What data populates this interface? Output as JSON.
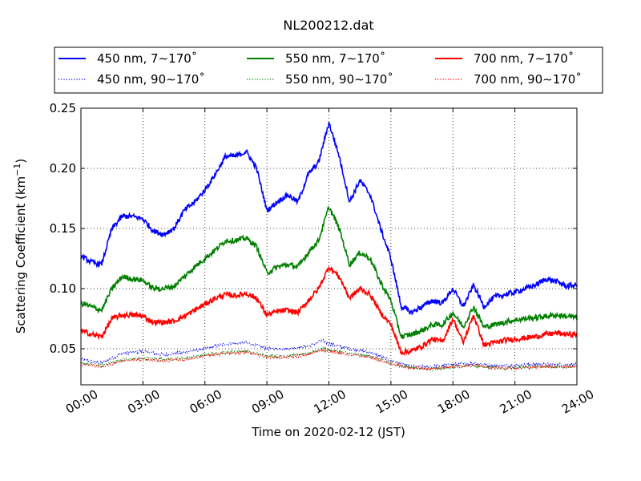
{
  "chart_data": {
    "type": "line",
    "title": "NL200212.dat",
    "xlabel": "Time on 2020-02-12 (JST)",
    "ylabel": "Scattering Coefficient (km",
    "ylabel_exponent": "−1",
    "ylabel_close": ")",
    "xlim": [
      0,
      24
    ],
    "ylim": [
      0.02,
      0.25
    ],
    "grid": true,
    "legend_placement": "top, above plot, 3 columns",
    "x_ticks": [
      {
        "value": 0,
        "label": "00:00"
      },
      {
        "value": 3,
        "label": "03:00"
      },
      {
        "value": 6,
        "label": "06:00"
      },
      {
        "value": 9,
        "label": "09:00"
      },
      {
        "value": 12,
        "label": "12:00"
      },
      {
        "value": 15,
        "label": "15:00"
      },
      {
        "value": 18,
        "label": "18:00"
      },
      {
        "value": 21,
        "label": "21:00"
      },
      {
        "value": 24,
        "label": "24:00"
      }
    ],
    "y_ticks": [
      {
        "value": 0.05,
        "label": "0.05"
      },
      {
        "value": 0.1,
        "label": "0.10"
      },
      {
        "value": 0.15,
        "label": "0.15"
      },
      {
        "value": 0.2,
        "label": "0.20"
      },
      {
        "value": 0.25,
        "label": "0.25"
      }
    ],
    "series": [
      {
        "name": "450 nm, 7∼170˚",
        "color": "#0000ff",
        "style": "solid",
        "x": [
          0,
          0.5,
          1,
          1.5,
          2,
          2.5,
          3,
          3.5,
          4,
          4.5,
          5,
          5.5,
          6,
          6.5,
          7,
          7.5,
          8,
          8.5,
          9,
          9.5,
          10,
          10.5,
          11,
          11.5,
          12,
          12.5,
          13,
          13.5,
          14,
          14.5,
          15,
          15.5,
          16,
          16.5,
          17,
          17.5,
          18,
          18.5,
          19,
          19.5,
          20,
          20.5,
          21,
          21.5,
          22,
          22.5,
          23,
          23.5,
          24
        ],
        "values": [
          0.127,
          0.122,
          0.12,
          0.15,
          0.16,
          0.16,
          0.158,
          0.148,
          0.145,
          0.15,
          0.165,
          0.172,
          0.182,
          0.195,
          0.21,
          0.21,
          0.214,
          0.2,
          0.165,
          0.172,
          0.178,
          0.172,
          0.195,
          0.205,
          0.238,
          0.21,
          0.172,
          0.19,
          0.178,
          0.15,
          0.125,
          0.085,
          0.08,
          0.085,
          0.09,
          0.088,
          0.1,
          0.085,
          0.103,
          0.085,
          0.093,
          0.095,
          0.097,
          0.1,
          0.103,
          0.108,
          0.106,
          0.102,
          0.103
        ]
      },
      {
        "name": "450 nm, 90∼170˚",
        "color": "#0000ff",
        "style": "dotted",
        "x": [
          0,
          1,
          2,
          3,
          4,
          5,
          6,
          7,
          8,
          9,
          10,
          11,
          11.7,
          12,
          13,
          14,
          15,
          16,
          17,
          18,
          19,
          20,
          21,
          22,
          23,
          24
        ],
        "values": [
          0.041,
          0.038,
          0.046,
          0.048,
          0.045,
          0.047,
          0.05,
          0.054,
          0.055,
          0.05,
          0.05,
          0.052,
          0.057,
          0.054,
          0.05,
          0.047,
          0.04,
          0.035,
          0.035,
          0.037,
          0.038,
          0.036,
          0.036,
          0.037,
          0.037,
          0.037
        ]
      },
      {
        "name": "550 nm, 7∼170˚",
        "color": "#008000",
        "style": "solid",
        "x": [
          0,
          0.5,
          1,
          1.5,
          2,
          2.5,
          3,
          3.5,
          4,
          4.5,
          5,
          5.5,
          6,
          6.5,
          7,
          7.5,
          8,
          8.5,
          9,
          9.5,
          10,
          10.5,
          11,
          11.5,
          12,
          12.5,
          13,
          13.5,
          14,
          14.5,
          15,
          15.5,
          16,
          16.5,
          17,
          17.5,
          18,
          18.5,
          19,
          19.5,
          20,
          20.5,
          21,
          21.5,
          22,
          22.5,
          23,
          23.5,
          24
        ],
        "values": [
          0.088,
          0.085,
          0.082,
          0.1,
          0.11,
          0.108,
          0.107,
          0.1,
          0.1,
          0.102,
          0.11,
          0.118,
          0.125,
          0.132,
          0.14,
          0.14,
          0.142,
          0.135,
          0.113,
          0.118,
          0.12,
          0.118,
          0.13,
          0.14,
          0.168,
          0.15,
          0.12,
          0.13,
          0.125,
          0.105,
          0.09,
          0.06,
          0.062,
          0.065,
          0.07,
          0.07,
          0.08,
          0.068,
          0.085,
          0.068,
          0.07,
          0.072,
          0.074,
          0.075,
          0.076,
          0.077,
          0.078,
          0.077,
          0.076
        ]
      },
      {
        "name": "550 nm, 90∼170˚",
        "color": "#008000",
        "style": "dotted",
        "x": [
          0,
          1,
          2,
          3,
          4,
          5,
          6,
          7,
          8,
          9,
          10,
          11,
          11.7,
          12,
          13,
          14,
          15,
          16,
          17,
          18,
          19,
          20,
          21,
          22,
          23,
          24
        ],
        "values": [
          0.038,
          0.036,
          0.041,
          0.042,
          0.041,
          0.042,
          0.045,
          0.047,
          0.048,
          0.044,
          0.044,
          0.046,
          0.05,
          0.049,
          0.046,
          0.044,
          0.038,
          0.034,
          0.033,
          0.035,
          0.036,
          0.034,
          0.034,
          0.035,
          0.035,
          0.035
        ]
      },
      {
        "name": "700 nm, 7∼170˚",
        "color": "#ff0000",
        "style": "solid",
        "x": [
          0,
          0.5,
          1,
          1.5,
          2,
          2.5,
          3,
          3.5,
          4,
          4.5,
          5,
          5.5,
          6,
          6.5,
          7,
          7.5,
          8,
          8.5,
          9,
          9.5,
          10,
          10.5,
          11,
          11.5,
          12,
          12.5,
          13,
          13.5,
          14,
          14.5,
          15,
          15.5,
          16,
          16.5,
          17,
          17.5,
          18,
          18.5,
          19,
          19.5,
          20,
          20.5,
          21,
          21.5,
          22,
          22.5,
          23,
          23.5,
          24
        ],
        "values": [
          0.065,
          0.062,
          0.06,
          0.075,
          0.078,
          0.078,
          0.077,
          0.072,
          0.072,
          0.073,
          0.077,
          0.082,
          0.087,
          0.092,
          0.095,
          0.094,
          0.096,
          0.092,
          0.078,
          0.081,
          0.082,
          0.08,
          0.09,
          0.1,
          0.118,
          0.11,
          0.092,
          0.1,
          0.095,
          0.08,
          0.07,
          0.047,
          0.048,
          0.052,
          0.058,
          0.056,
          0.075,
          0.055,
          0.078,
          0.053,
          0.055,
          0.057,
          0.058,
          0.059,
          0.06,
          0.062,
          0.063,
          0.062,
          0.062
        ]
      },
      {
        "name": "700 nm, 90∼170˚",
        "color": "#ff0000",
        "style": "dotted",
        "x": [
          0,
          1,
          2,
          3,
          4,
          5,
          6,
          7,
          8,
          9,
          10,
          11,
          11.7,
          12,
          13,
          14,
          15,
          16,
          17,
          18,
          19,
          20,
          21,
          22,
          23,
          24
        ],
        "values": [
          0.037,
          0.035,
          0.04,
          0.041,
          0.04,
          0.041,
          0.044,
          0.046,
          0.047,
          0.043,
          0.043,
          0.045,
          0.049,
          0.048,
          0.045,
          0.043,
          0.037,
          0.034,
          0.033,
          0.035,
          0.036,
          0.034,
          0.034,
          0.035,
          0.035,
          0.035
        ]
      }
    ]
  }
}
